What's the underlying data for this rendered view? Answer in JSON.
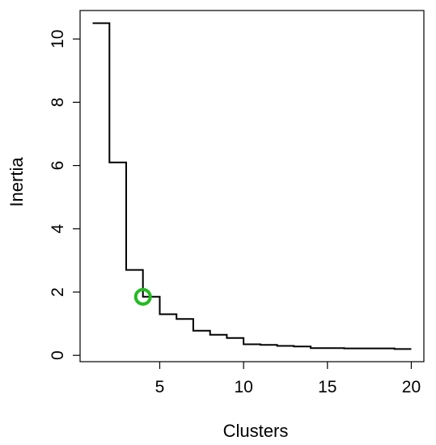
{
  "chart_data": {
    "type": "line",
    "step": true,
    "xlabel": "Clusters",
    "ylabel": "Inertia",
    "xlim": [
      0.25,
      20.75
    ],
    "ylim": [
      -0.2,
      10.9
    ],
    "x_ticks": [
      5,
      10,
      15,
      20
    ],
    "y_ticks": [
      0,
      2,
      4,
      6,
      8,
      10
    ],
    "grid": false,
    "series": [
      {
        "x": [
          1,
          2,
          3,
          4,
          5,
          6,
          7,
          8,
          9,
          10,
          11,
          12,
          13,
          14,
          15,
          16,
          17,
          18,
          19,
          20
        ],
        "values": [
          10.5,
          6.1,
          2.7,
          1.85,
          1.3,
          1.15,
          0.78,
          0.65,
          0.55,
          0.35,
          0.33,
          0.3,
          0.28,
          0.23,
          0.23,
          0.22,
          0.22,
          0.22,
          0.2,
          0.2
        ],
        "color": "#000000"
      }
    ],
    "highlight": {
      "x": 4,
      "y": 1.85,
      "color": "#22bb22"
    }
  }
}
